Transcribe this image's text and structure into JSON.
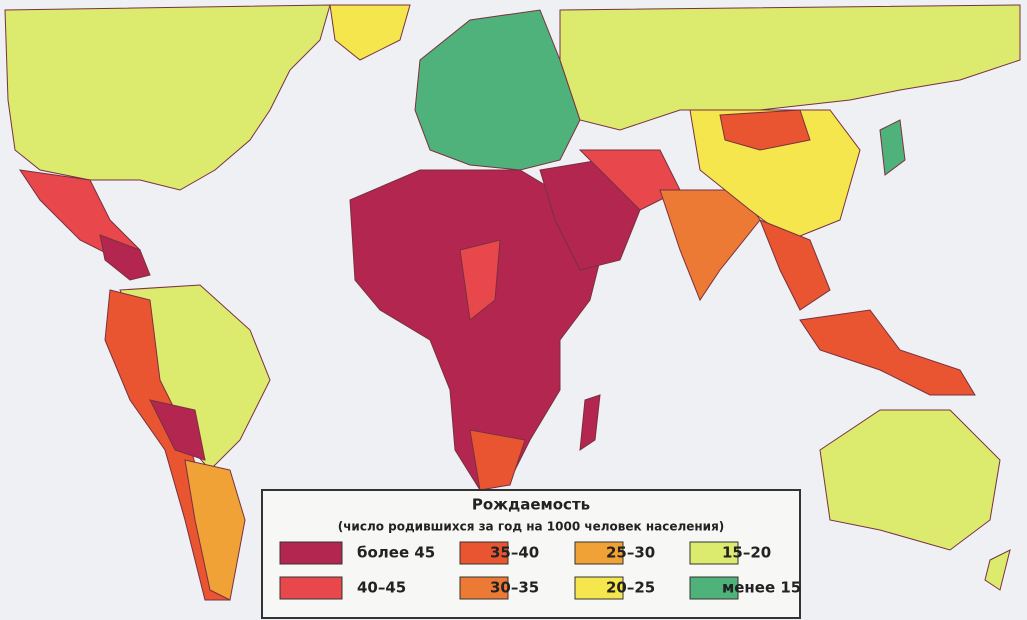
{
  "legend": {
    "title": "Рождаемость",
    "subtitle": "(число родившихся за год на 1000 человек населения)",
    "items": [
      {
        "label": "более 45",
        "color": "#b3264f"
      },
      {
        "label": "40–45",
        "color": "#e8474c"
      },
      {
        "label": "35–40",
        "color": "#e85530"
      },
      {
        "label": "30–35",
        "color": "#ec7a34"
      },
      {
        "label": "25–30",
        "color": "#f0a236"
      },
      {
        "label": "20–25",
        "color": "#f4e64c"
      },
      {
        "label": "15–20",
        "color": "#dcea6e"
      },
      {
        "label": "менее 15",
        "color": "#4fb27a"
      }
    ]
  }
}
